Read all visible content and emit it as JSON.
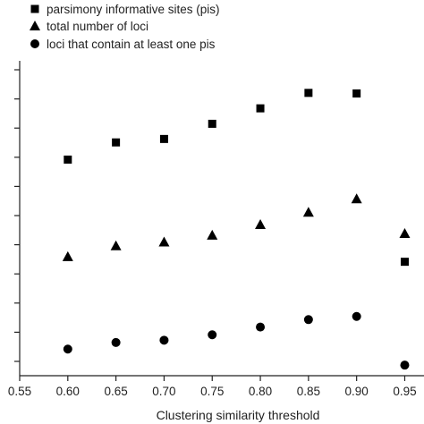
{
  "chart_data": {
    "type": "scatter",
    "xlabel": "Clustering similarity threshold",
    "ylabel": "",
    "xlim": [
      0.55,
      0.97
    ],
    "ylim": [
      0,
      1
    ],
    "x_ticks": [
      "0.55",
      "0.60",
      "0.65",
      "0.70",
      "0.75",
      "0.80",
      "0.85",
      "0.90",
      "0.95"
    ],
    "x": [
      0.6,
      0.65,
      0.7,
      0.75,
      0.8,
      0.85,
      0.9,
      0.95
    ],
    "y_tick_count": 11,
    "grid": false,
    "legend_position": "top-left",
    "series": [
      {
        "name": "parsimony informative sites (pis)",
        "marker": "square",
        "color": "#000000",
        "values": [
          0.705,
          0.765,
          0.777,
          0.83,
          0.884,
          0.938,
          0.936,
          0.348
        ]
      },
      {
        "name": "total number of loci",
        "marker": "triangle",
        "color": "#000000",
        "values": [
          0.366,
          0.404,
          0.417,
          0.441,
          0.478,
          0.521,
          0.568,
          0.447
        ]
      },
      {
        "name": "loci that contain at least one pis",
        "marker": "circle",
        "color": "#000000",
        "values": [
          0.043,
          0.066,
          0.074,
          0.093,
          0.12,
          0.146,
          0.157,
          -0.013
        ]
      }
    ]
  }
}
